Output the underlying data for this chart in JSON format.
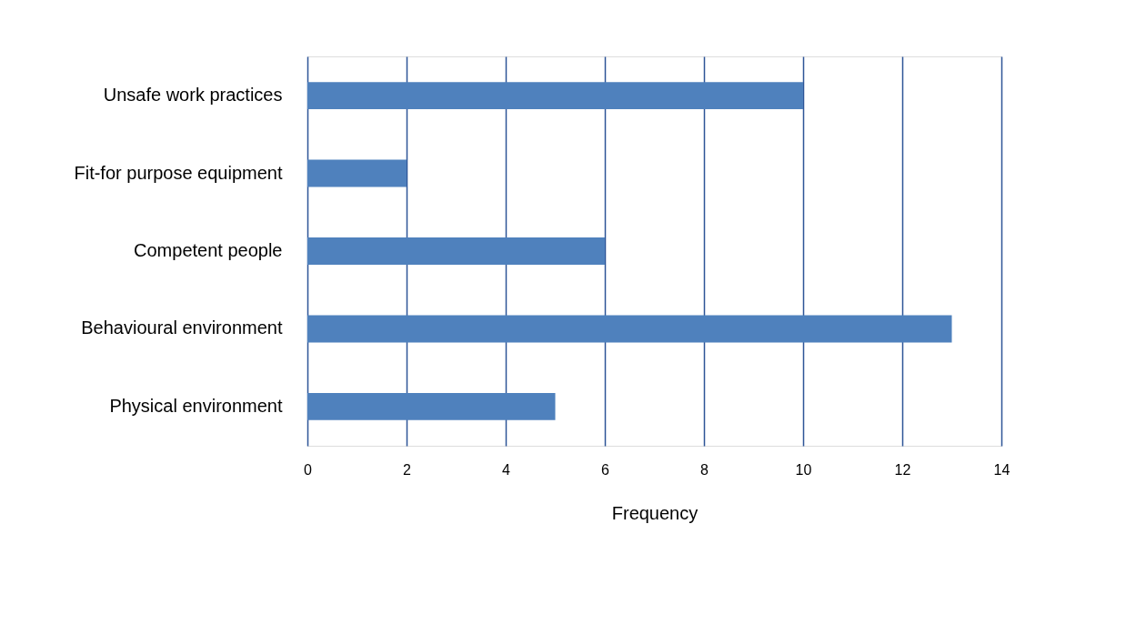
{
  "chart_data": {
    "type": "bar",
    "orientation": "horizontal",
    "xlabel": "Frequency",
    "categories": [
      "Unsafe work practices",
      "Fit-for purpose equipment",
      "Competent people",
      "Behavioural environment",
      "Physical environment"
    ],
    "values": [
      10,
      2,
      6,
      13,
      5
    ],
    "color": "#4f81bd",
    "xlim": [
      0,
      14
    ],
    "xticks": [
      0,
      2,
      4,
      6,
      8,
      10,
      12,
      14
    ],
    "grid": "x"
  }
}
